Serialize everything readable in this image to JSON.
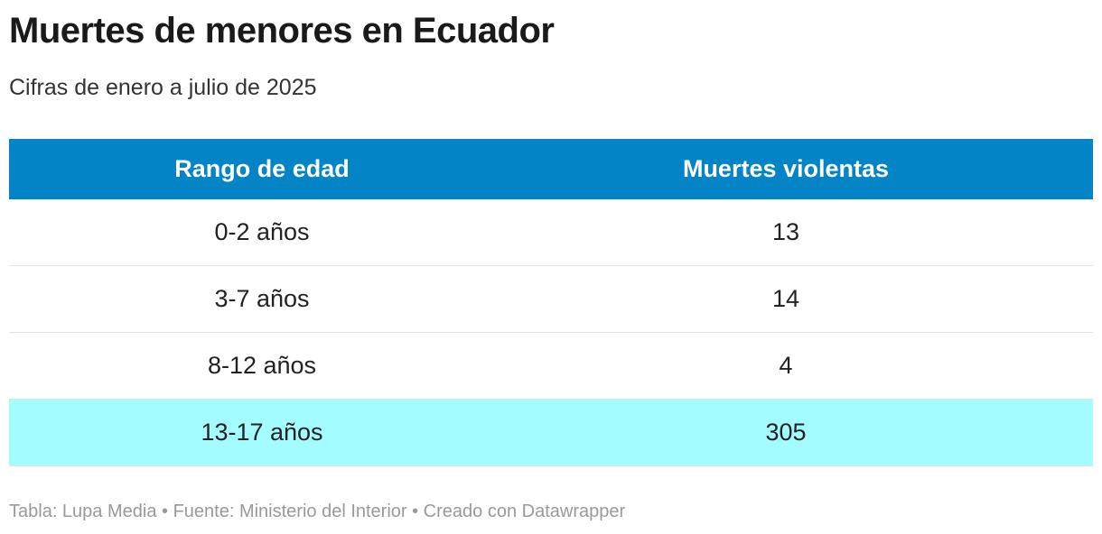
{
  "header": {
    "title": "Muertes de menores en Ecuador",
    "subtitle": "Cifras de enero a julio de 2025"
  },
  "table": {
    "columns": [
      "Rango de edad",
      "Muertes violentas"
    ],
    "rows": [
      [
        "0-2 años",
        13
      ],
      [
        "3-7 años",
        14
      ],
      [
        "8-12 años",
        4
      ],
      [
        "13-17 años",
        305
      ]
    ],
    "header_color": "#0284c7",
    "highlight_row": 3,
    "highlight_color": "#a3fcff"
  },
  "footer": "Tabla: Lupa Media • Fuente: Ministerio del Interior • Creado con Datawrapper"
}
